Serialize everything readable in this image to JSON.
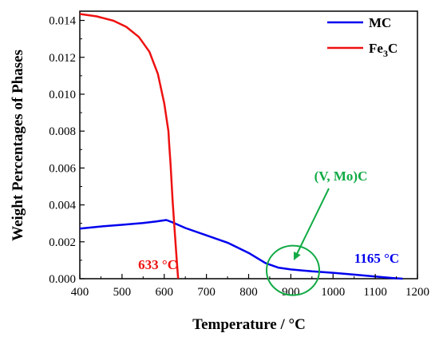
{
  "chart_data": {
    "type": "line",
    "xlabel": "Temperature / °C",
    "ylabel": "Weight Percentages of Phases",
    "xlim": [
      400,
      1200
    ],
    "ylim": [
      0,
      0.0145
    ],
    "x_ticks": [
      400,
      500,
      600,
      700,
      800,
      900,
      1000,
      1100,
      1200
    ],
    "y_ticks": [
      0.0,
      0.002,
      0.004,
      0.006,
      0.008,
      0.01,
      0.012,
      0.014
    ],
    "y_tick_labels": [
      "0.000",
      "0.002",
      "0.004",
      "0.006",
      "0.008",
      "0.010",
      "0.012",
      "0.014"
    ],
    "grid": false,
    "legend_position": "top-right",
    "series": [
      {
        "name": "MC",
        "color": "#0000ee",
        "points": [
          [
            400,
            0.00272
          ],
          [
            450,
            0.00283
          ],
          [
            500,
            0.00292
          ],
          [
            550,
            0.00302
          ],
          [
            580,
            0.0031
          ],
          [
            605,
            0.00318
          ],
          [
            620,
            0.00305
          ],
          [
            650,
            0.00275
          ],
          [
            700,
            0.00235
          ],
          [
            750,
            0.00195
          ],
          [
            800,
            0.0014
          ],
          [
            840,
            0.00085
          ],
          [
            870,
            0.0006
          ],
          [
            900,
            0.0005
          ],
          [
            950,
            0.0004
          ],
          [
            1000,
            0.00032
          ],
          [
            1050,
            0.00022
          ],
          [
            1100,
            0.00012
          ],
          [
            1140,
            4e-05
          ],
          [
            1165,
            0.0
          ]
        ]
      },
      {
        "name": "Fe3C",
        "legend_label": {
          "base": "Fe",
          "sub": "3",
          "tail": "C"
        },
        "color": "#ee1111",
        "points": [
          [
            400,
            0.01435
          ],
          [
            440,
            0.01422
          ],
          [
            480,
            0.01398
          ],
          [
            510,
            0.01365
          ],
          [
            540,
            0.0131
          ],
          [
            565,
            0.0123
          ],
          [
            585,
            0.0111
          ],
          [
            600,
            0.0095
          ],
          [
            610,
            0.008
          ],
          [
            612,
            0.0072
          ],
          [
            615,
            0.0062
          ],
          [
            620,
            0.0042
          ],
          [
            625,
            0.0025
          ],
          [
            630,
            0.0009
          ],
          [
            633,
            0.0
          ]
        ]
      }
    ],
    "annotations": {
      "fe3c_temp": {
        "text": "633 °C",
        "color": "#ee1111"
      },
      "mc_temp": {
        "text": "1165 °C",
        "color": "#0000ee"
      },
      "vmoc": {
        "text": "(V, Mo)C",
        "color": "#11aa44",
        "circle_center": [
          905,
          0.00045
        ]
      }
    }
  }
}
